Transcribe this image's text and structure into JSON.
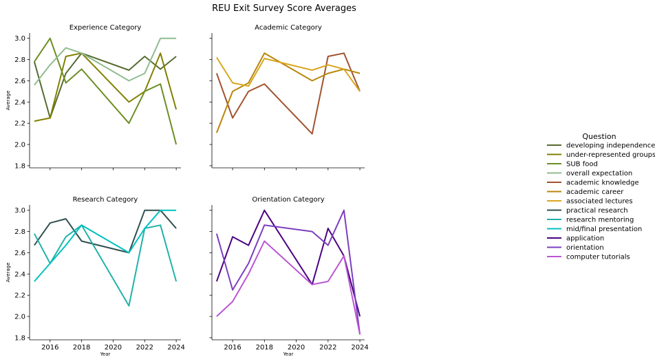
{
  "figure": {
    "title": "REU Exit Survey Score Averages",
    "legend_title": "Question",
    "legend_placement": "right"
  },
  "chart_data": [
    {
      "type": "line",
      "title": "Experience Category",
      "xlabel": "",
      "ylabel": "Average",
      "xlim": [
        2014.7,
        2024.3
      ],
      "ylim": [
        1.78,
        3.05
      ],
      "xticks": [
        2016,
        2018,
        2020,
        2022,
        2024
      ],
      "yticks": [
        1.8,
        2.0,
        2.2,
        2.4,
        2.6,
        2.8,
        3.0
      ],
      "show_x_tick_labels": false,
      "show_y_tick_labels": true,
      "grid": false,
      "series": [
        {
          "name": "developing independence",
          "color": "#556b2f",
          "x": [
            2015,
            2016,
            2017,
            2018,
            2021,
            2022,
            2023,
            2024
          ],
          "y": [
            2.78,
            2.25,
            2.67,
            2.86,
            2.7,
            2.83,
            2.71,
            2.83
          ]
        },
        {
          "name": "under-represented groups",
          "color": "#808000",
          "x": [
            2015,
            2016,
            2017,
            2018,
            2021,
            2022,
            2023,
            2024
          ],
          "y": [
            2.22,
            2.25,
            2.83,
            2.86,
            2.4,
            2.5,
            2.86,
            2.33
          ]
        },
        {
          "name": "SUB food",
          "color": "#6b8e23",
          "x": [
            2015,
            2016,
            2017,
            2018,
            2021,
            2022,
            2023,
            2024
          ],
          "y": [
            2.78,
            3.0,
            2.58,
            2.71,
            2.2,
            2.5,
            2.57,
            2.0
          ]
        },
        {
          "name": "overall expectation",
          "color": "#8fbc8f",
          "x": [
            2015,
            2016,
            2017,
            2018,
            2021,
            2022,
            2023,
            2024
          ],
          "y": [
            2.56,
            2.75,
            2.91,
            2.86,
            2.6,
            2.67,
            3.0,
            3.0
          ]
        }
      ]
    },
    {
      "type": "line",
      "title": "Academic Category",
      "xlabel": "",
      "ylabel": "",
      "xlim": [
        2014.7,
        2024.3
      ],
      "ylim": [
        1.78,
        3.05
      ],
      "xticks": [
        2016,
        2018,
        2020,
        2022,
        2024
      ],
      "yticks": [
        1.8,
        2.0,
        2.2,
        2.4,
        2.6,
        2.8,
        3.0
      ],
      "show_x_tick_labels": false,
      "show_y_tick_labels": false,
      "grid": false,
      "series": [
        {
          "name": "academic knowledge",
          "color": "#a0522d",
          "x": [
            2015,
            2016,
            2017,
            2018,
            2021,
            2022,
            2023,
            2024
          ],
          "y": [
            2.67,
            2.25,
            2.5,
            2.57,
            2.1,
            2.83,
            2.86,
            2.5
          ]
        },
        {
          "name": "academic career",
          "color": "#b8860b",
          "x": [
            2015,
            2016,
            2017,
            2018,
            2021,
            2022,
            2023,
            2024
          ],
          "y": [
            2.11,
            2.5,
            2.58,
            2.86,
            2.6,
            2.67,
            2.71,
            2.67
          ]
        },
        {
          "name": "associated lectures",
          "color": "#daa520",
          "x": [
            2015,
            2016,
            2017,
            2018,
            2021,
            2022,
            2023,
            2024
          ],
          "y": [
            2.82,
            2.58,
            2.55,
            2.81,
            2.7,
            2.75,
            2.71,
            2.5
          ]
        }
      ]
    },
    {
      "type": "line",
      "title": "Research Category",
      "xlabel": "Year",
      "ylabel": "Average",
      "xlim": [
        2014.7,
        2024.3
      ],
      "ylim": [
        1.78,
        3.05
      ],
      "xticks": [
        2016,
        2018,
        2020,
        2022,
        2024
      ],
      "yticks": [
        1.8,
        2.0,
        2.2,
        2.4,
        2.6,
        2.8,
        3.0
      ],
      "show_x_tick_labels": true,
      "show_y_tick_labels": true,
      "grid": false,
      "series": [
        {
          "name": "practical research",
          "color": "#2f4f4f",
          "x": [
            2015,
            2016,
            2017,
            2018,
            2021,
            2022,
            2023,
            2024
          ],
          "y": [
            2.67,
            2.88,
            2.92,
            2.71,
            2.6,
            3.0,
            3.0,
            2.83
          ]
        },
        {
          "name": "research mentoring",
          "color": "#20b2aa",
          "x": [
            2015,
            2016,
            2017,
            2018,
            2021,
            2022,
            2023,
            2024
          ],
          "y": [
            2.78,
            2.5,
            2.75,
            2.86,
            2.1,
            2.83,
            2.86,
            2.33
          ]
        },
        {
          "name": "mid/final presentation",
          "color": "#00c0c0",
          "x": [
            2015,
            2016,
            2017,
            2018,
            2021,
            2022,
            2023,
            2024
          ],
          "y": [
            2.33,
            2.5,
            2.67,
            2.86,
            2.6,
            2.83,
            3.0,
            3.0
          ]
        }
      ]
    },
    {
      "type": "line",
      "title": "Orientation Category",
      "xlabel": "Year",
      "ylabel": "",
      "xlim": [
        2014.7,
        2024.3
      ],
      "ylim": [
        1.78,
        3.05
      ],
      "xticks": [
        2016,
        2018,
        2020,
        2022,
        2024
      ],
      "yticks": [
        1.8,
        2.0,
        2.2,
        2.4,
        2.6,
        2.8,
        3.0
      ],
      "show_x_tick_labels": true,
      "show_y_tick_labels": false,
      "grid": false,
      "series": [
        {
          "name": "application",
          "color": "#4b0082",
          "x": [
            2015,
            2016,
            2017,
            2018,
            2021,
            2022,
            2023,
            2024
          ],
          "y": [
            2.33,
            2.75,
            2.67,
            3.0,
            2.3,
            2.83,
            2.57,
            2.0
          ]
        },
        {
          "name": "orientation",
          "color": "#7b3fbf",
          "x": [
            2015,
            2016,
            2017,
            2018,
            2021,
            2022,
            2023,
            2024
          ],
          "y": [
            2.78,
            2.25,
            2.5,
            2.86,
            2.8,
            2.67,
            3.0,
            1.83
          ]
        },
        {
          "name": "computer tutorials",
          "color": "#ba55d3",
          "x": [
            2015,
            2016,
            2017,
            2018,
            2021,
            2022,
            2023,
            2024
          ],
          "y": [
            2.0,
            2.14,
            2.4,
            2.71,
            2.3,
            2.33,
            2.57,
            1.83
          ]
        }
      ]
    }
  ]
}
